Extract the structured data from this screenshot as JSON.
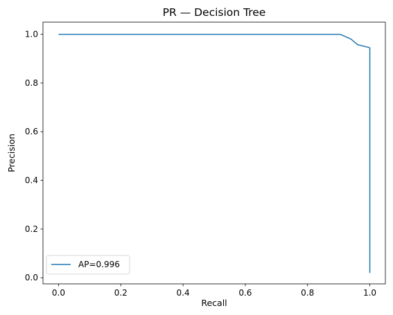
{
  "chart_data": {
    "type": "line",
    "title": "PR — Decision Tree",
    "xlabel": "Recall",
    "ylabel": "Precision",
    "xlim": [
      -0.05,
      1.05
    ],
    "ylim": [
      -0.025,
      1.05
    ],
    "xticks": [
      0.0,
      0.2,
      0.4,
      0.6,
      0.8,
      1.0
    ],
    "yticks": [
      0.0,
      0.2,
      0.4,
      0.6,
      0.8,
      1.0
    ],
    "xtick_labels": [
      "0.0",
      "0.2",
      "0.4",
      "0.6",
      "0.8",
      "1.0"
    ],
    "ytick_labels": [
      "0.0",
      "0.2",
      "0.4",
      "0.6",
      "0.8",
      "1.0"
    ],
    "grid": false,
    "legend_position": "lower-left",
    "series": [
      {
        "name": "AP=0.996",
        "color": "#1f77b4",
        "x": [
          0.0,
          0.905,
          0.94,
          0.96,
          1.0,
          1.0
        ],
        "y": [
          1.0,
          1.0,
          0.98,
          0.958,
          0.945,
          0.02
        ]
      }
    ]
  }
}
